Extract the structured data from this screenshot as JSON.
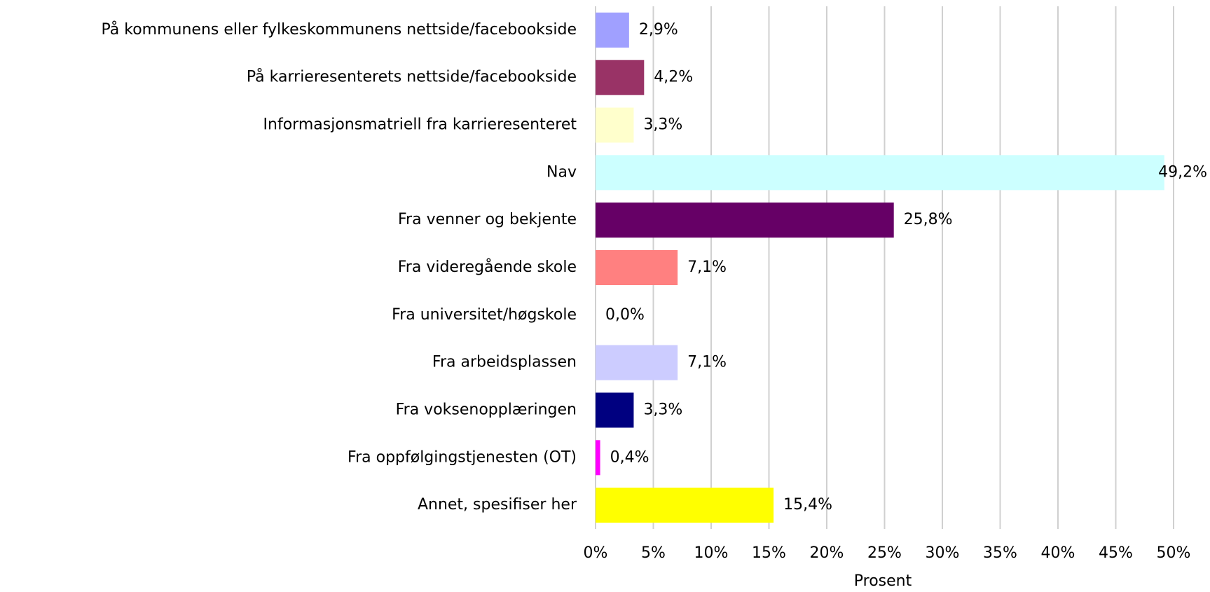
{
  "chart_data": {
    "type": "bar",
    "orientation": "horizontal",
    "categories": [
      "På kommunens eller fylkeskommunens nettside/facebookside",
      "På karrieresenterets nettside/facebookside",
      "Informasjonsmatriell fra karrieresenteret",
      "Nav",
      "Fra venner og bekjente",
      "Fra videregående skole",
      "Fra universitet/høgskole",
      "Fra arbeidsplassen",
      "Fra voksenopplæringen",
      "Fra oppfølgingstjenesten (OT)",
      "Annet, spesifiser her"
    ],
    "values": [
      2.9,
      4.2,
      3.3,
      49.2,
      25.8,
      7.1,
      0.0,
      7.1,
      3.3,
      0.4,
      15.4
    ],
    "value_labels": [
      "2,9%",
      "4,2%",
      "3,3%",
      "49,2%",
      "25,8%",
      "7,1%",
      "0,0%",
      "7,1%",
      "3,3%",
      "0,4%",
      "15,4%"
    ],
    "colors": [
      "#a0a0ff",
      "#993366",
      "#ffffcc",
      "#ccffff",
      "#660066",
      "#ff8080",
      "#0066cc",
      "#ccccff",
      "#000080",
      "#ff00ff",
      "#ffff00"
    ],
    "xlabel": "Prosent",
    "xlim": [
      0,
      50
    ],
    "xticks": [
      {
        "value": 0,
        "label": "0%"
      },
      {
        "value": 5,
        "label": "5%"
      },
      {
        "value": 10,
        "label": "10%"
      },
      {
        "value": 15,
        "label": "15%"
      },
      {
        "value": 20,
        "label": "20%"
      },
      {
        "value": 25,
        "label": "25%"
      },
      {
        "value": 30,
        "label": "30%"
      },
      {
        "value": 35,
        "label": "35%"
      },
      {
        "value": 40,
        "label": "40%"
      },
      {
        "value": 45,
        "label": "45%"
      },
      {
        "value": 50,
        "label": "50%"
      }
    ],
    "grid": true
  }
}
